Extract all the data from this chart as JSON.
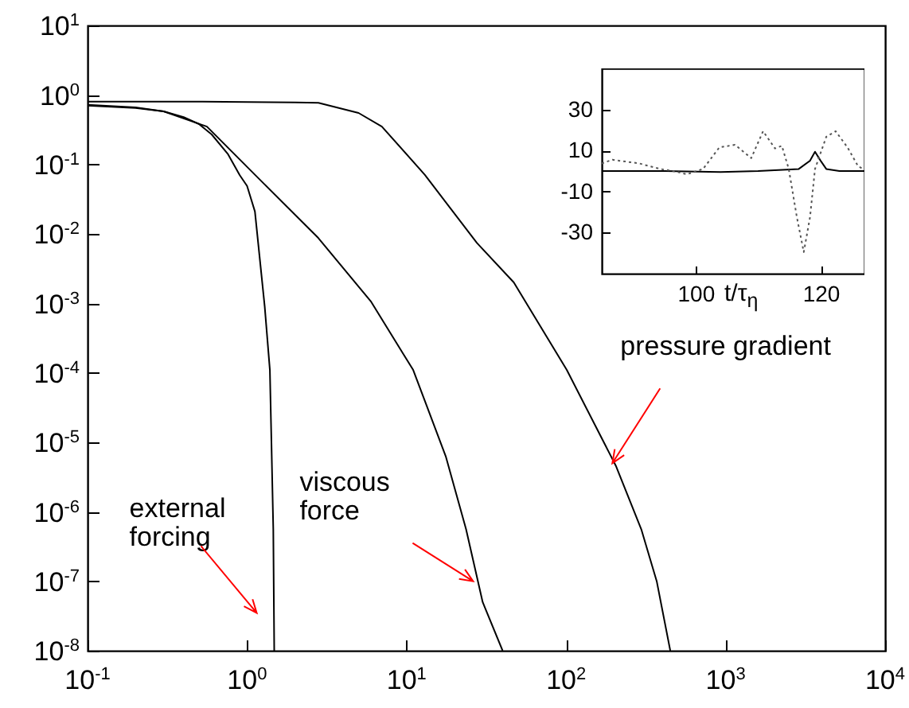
{
  "chart_data": [
    {
      "type": "line",
      "log": "xy",
      "marker": "none",
      "xlim": [
        0.1,
        10000
      ],
      "ylim": [
        1e-08,
        10
      ],
      "xticks": [
        {
          "value": 0.1,
          "label": "10$^{-1}$"
        },
        {
          "value": 1,
          "label": "10$^{0}$"
        },
        {
          "value": 10,
          "label": "10$^{1}$"
        },
        {
          "value": 100,
          "label": "10$^{2}$"
        },
        {
          "value": 1000,
          "label": "10$^{3}$"
        },
        {
          "value": 10000,
          "label": "10$^{4}$"
        }
      ],
      "yticks": [
        {
          "value": 1e-08,
          "label": "10$^{-8}$"
        },
        {
          "value": 1e-07,
          "label": "10$^{-7}$"
        },
        {
          "value": 1e-06,
          "label": "10$^{-6}$"
        },
        {
          "value": 1e-05,
          "label": "10$^{-5}$"
        },
        {
          "value": 0.0001,
          "label": "10$^{-4}$"
        },
        {
          "value": 0.001,
          "label": "10$^{-3}$"
        },
        {
          "value": 0.01,
          "label": "10$^{-2}$"
        },
        {
          "value": 0.1,
          "label": "10$^{-1}$"
        },
        {
          "value": 1,
          "label": "10$^{0}$"
        },
        {
          "value": 10,
          "label": "10$^{1}$"
        }
      ],
      "series": [
        {
          "color": "#000000",
          "x": [
            0.1,
            0.2,
            0.3,
            0.4,
            0.5,
            0.6,
            0.76,
            0.9,
            1.0,
            1.12,
            1.29,
            1.39,
            1.46,
            1.48
          ],
          "values": [
            0.7,
            0.65,
            0.58,
            0.48,
            0.38,
            0.27,
            0.14,
            0.07,
            0.049,
            0.021,
            0.0009,
            0.00011,
            5.6e-07,
            1e-08
          ]
        },
        {
          "color": "#000000",
          "x": [
            0.1,
            0.2,
            0.3,
            0.56,
            1.12,
            2.8,
            6,
            11,
            17.6,
            23.6,
            30,
            40
          ],
          "values": [
            0.72,
            0.66,
            0.58,
            0.35,
            0.071,
            0.0087,
            0.00105,
            0.00011,
            6.3e-06,
            5.6e-07,
            5e-08,
            1e-08
          ]
        },
        {
          "color": "#000000",
          "x": [
            0.1,
            0.5,
            1,
            2,
            2.8,
            5,
            7,
            13,
            27.6,
            47,
            101,
            205,
            296,
            370,
            450
          ],
          "values": [
            0.8,
            0.8,
            0.79,
            0.78,
            0.77,
            0.55,
            0.35,
            0.071,
            0.0074,
            0.002,
            0.00011,
            4.6e-06,
            5.6e-07,
            1e-07,
            1e-08
          ]
        }
      ],
      "annotations": [
        {
          "text": "external forcing",
          "x": 1.48,
          "y": 3.5e-08
        },
        {
          "text": "viscous force",
          "x": 28,
          "y": 1e-07
        },
        {
          "text": "pressure gradient",
          "x": 195,
          "y": 5e-06
        }
      ]
    },
    {
      "type": "line",
      "marker": "none",
      "xlim": [
        85,
        127
      ],
      "ylim": [
        -50,
        50
      ],
      "xticks": [
        100,
        120
      ],
      "yticks": [
        -30,
        -10,
        10,
        30
      ],
      "xlabel": "t/τ$_{η}$",
      "series": [
        {
          "color": "#000000",
          "line_style": "solid",
          "x": [
            85,
            95,
            104,
            110,
            116.5,
            118.3,
            119.1,
            120,
            120.9,
            123,
            127
          ],
          "values": [
            0,
            0,
            -0.5,
            0,
            1,
            5,
            9.4,
            5,
            1,
            0,
            0
          ]
        },
        {
          "color": "#555555",
          "line_style": "dotted",
          "x": [
            85,
            86.7,
            91,
            94.4,
            96.9,
            98.6,
            101.2,
            103.8,
            106.3,
            108.9,
            110.8,
            112.7,
            113.8,
            114.9,
            116.2,
            117.3,
            118.3,
            119.1,
            120.9,
            122.4,
            124.3,
            126,
            126.8
          ],
          "values": [
            3.7,
            5.5,
            3.7,
            1,
            -0.3,
            -1.6,
            1,
            11.5,
            12.8,
            6.3,
            19.4,
            11,
            12.3,
            1,
            -22.5,
            -39.5,
            -22.5,
            1,
            16.7,
            19.4,
            11.5,
            2.3,
            1
          ]
        }
      ]
    }
  ]
}
